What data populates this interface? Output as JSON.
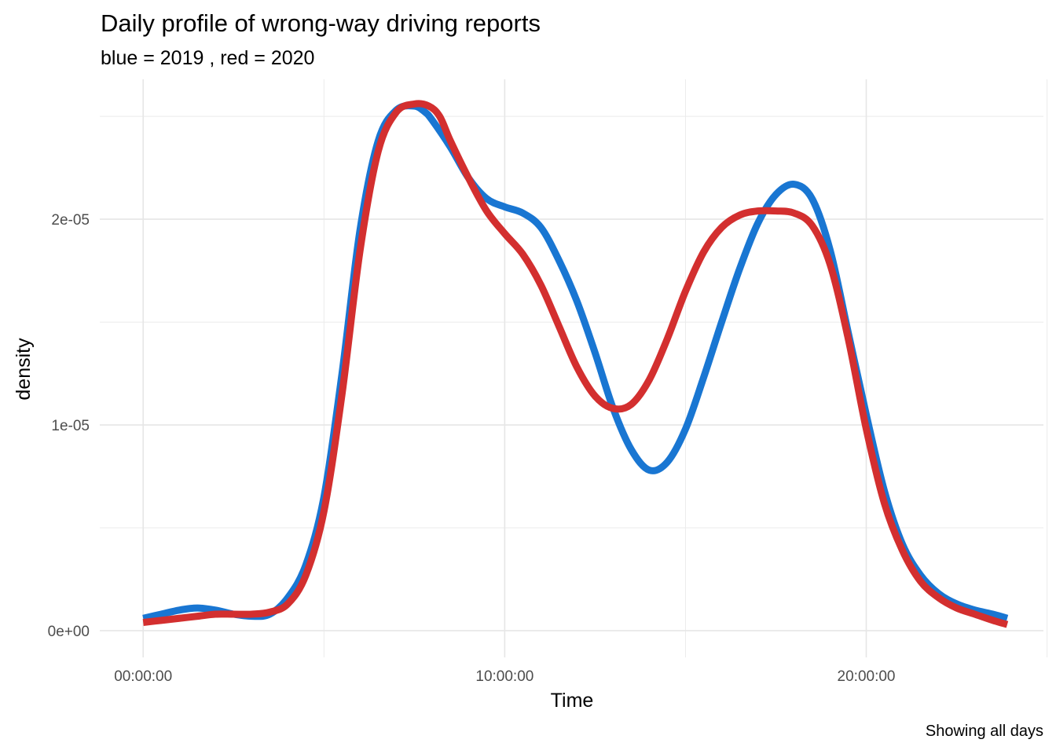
{
  "chart_data": {
    "type": "line",
    "title": "Daily profile of wrong-way driving reports",
    "subtitle": "blue = 2019 , red = 2020",
    "xlabel": "Time",
    "ylabel": "density",
    "caption": "Showing all days",
    "x_unit": "hours",
    "xlim": [
      -1.2,
      24.9
    ],
    "ylim": [
      -1.3e-06,
      2.68e-05
    ],
    "x_ticks": [
      {
        "value": 0,
        "label": "00:00:00"
      },
      {
        "value": 10,
        "label": "10:00:00"
      },
      {
        "value": 20,
        "label": "20:00:00"
      }
    ],
    "x_minor": [
      5,
      15,
      25
    ],
    "y_ticks": [
      {
        "value": 0,
        "label": "0e+00"
      },
      {
        "value": 1e-05,
        "label": "1e-05"
      },
      {
        "value": 2e-05,
        "label": "2e-05"
      }
    ],
    "y_minor": [
      5e-06,
      1.5e-05,
      2.5e-05
    ],
    "grid": true,
    "series": [
      {
        "color": "#1976d2",
        "x": [
          0,
          0.5,
          1,
          1.5,
          2,
          2.5,
          3,
          3.5,
          4,
          4.5,
          5,
          5.5,
          6,
          6.5,
          7,
          7.5,
          7.8,
          8,
          8.5,
          9,
          9.5,
          10,
          10.5,
          11,
          11.5,
          12,
          12.5,
          13,
          13.5,
          14,
          14.5,
          15,
          15.5,
          16,
          16.5,
          17,
          17.5,
          18,
          18.5,
          19,
          19.5,
          20,
          20.5,
          21,
          21.5,
          22,
          22.5,
          23,
          23.5,
          23.9
        ],
        "y": [
          6e-07,
          8e-07,
          1e-06,
          1.1e-06,
          1e-06,
          8e-07,
          7e-07,
          8e-07,
          1.6e-06,
          3.2e-06,
          6.5e-06,
          1.25e-05,
          1.95e-05,
          2.38e-05,
          2.53e-05,
          2.55e-05,
          2.52e-05,
          2.48e-05,
          2.35e-05,
          2.2e-05,
          2.1e-05,
          2.06e-05,
          2.03e-05,
          1.96e-05,
          1.8e-05,
          1.6e-05,
          1.35e-05,
          1.08e-05,
          8.8e-06,
          7.8e-06,
          8.2e-06,
          9.8e-06,
          1.23e-05,
          1.5e-05,
          1.76e-05,
          1.98e-05,
          2.12e-05,
          2.17e-05,
          2.1e-05,
          1.85e-05,
          1.45e-05,
          1.05e-05,
          6.8e-06,
          4.2e-06,
          2.7e-06,
          1.8e-06,
          1.3e-06,
          1e-06,
          8e-07,
          6e-07
        ]
      },
      {
        "color": "#d32f2f",
        "x": [
          0,
          0.5,
          1,
          1.5,
          2,
          2.5,
          3,
          3.5,
          4,
          4.5,
          5,
          5.5,
          6,
          6.5,
          7,
          7.5,
          7.9,
          8.2,
          8.5,
          9,
          9.5,
          10,
          10.5,
          11,
          11.5,
          12,
          12.5,
          13,
          13.5,
          14,
          14.5,
          15,
          15.5,
          16,
          16.5,
          17,
          17.5,
          18,
          18.5,
          19,
          19.5,
          20,
          20.5,
          21,
          21.5,
          22,
          22.5,
          23,
          23.5,
          23.9
        ],
        "y": [
          4e-07,
          5e-07,
          6e-07,
          7e-07,
          8e-07,
          8e-07,
          8e-07,
          9e-07,
          1.3e-06,
          2.7e-06,
          5.8e-06,
          1.15e-05,
          1.85e-05,
          2.33e-05,
          2.52e-05,
          2.56e-05,
          2.55e-05,
          2.5e-05,
          2.38e-05,
          2.2e-05,
          2.04e-05,
          1.93e-05,
          1.83e-05,
          1.68e-05,
          1.48e-05,
          1.28e-05,
          1.14e-05,
          1.08e-05,
          1.1e-05,
          1.22e-05,
          1.42e-05,
          1.65e-05,
          1.84e-05,
          1.96e-05,
          2.02e-05,
          2.04e-05,
          2.04e-05,
          2.03e-05,
          1.97e-05,
          1.78e-05,
          1.42e-05,
          9.8e-06,
          6.2e-06,
          3.9e-06,
          2.4e-06,
          1.6e-06,
          1.1e-06,
          8e-07,
          5e-07,
          3e-07
        ]
      }
    ]
  }
}
